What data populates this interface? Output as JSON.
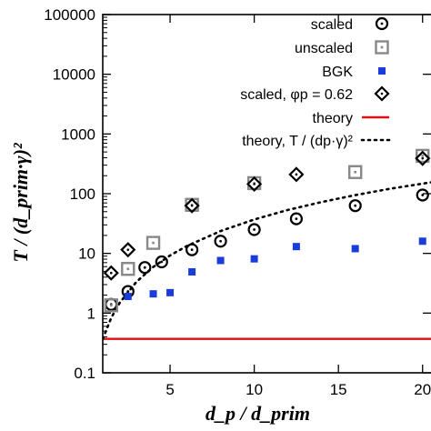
{
  "chart_data": {
    "type": "scatter",
    "ylabel": "T / (d_prim·γ)²",
    "xlabel": "d_p / d_prim",
    "yscale": "log",
    "xlim": [
      1,
      20.5
    ],
    "ylim": [
      0.1,
      100000
    ],
    "x_ticks": [
      5,
      10,
      15,
      20
    ],
    "x_tick_labels": [
      "5",
      "10",
      "15",
      "20"
    ],
    "y_ticks": [
      0.1,
      1,
      10,
      100,
      1000,
      10000,
      100000
    ],
    "y_tick_labels": [
      "0.1",
      "1",
      "10",
      "100",
      "1000",
      "10000",
      "100000"
    ],
    "legend_position": "top-right",
    "series": [
      {
        "name": "scaled",
        "marker": "circle-dot",
        "color": "#000000",
        "x": [
          1.5,
          2.5,
          3.5,
          4.5,
          6.3,
          8.0,
          10.0,
          12.5,
          16.0,
          20.0
        ],
        "y": [
          1.4,
          2.3,
          5.8,
          7.2,
          11.5,
          16,
          25,
          38,
          63,
          95
        ]
      },
      {
        "name": "unscaled",
        "marker": "square-dot",
        "color": "#888888",
        "x": [
          1.5,
          2.5,
          4.0,
          6.3,
          10.0,
          16.0,
          20.0
        ],
        "y": [
          1.35,
          5.5,
          15,
          65,
          150,
          230,
          430
        ]
      },
      {
        "name": "BGK",
        "marker": "filled-square",
        "color": "#1a3cdb",
        "x": [
          2.5,
          4.0,
          5.0,
          6.3,
          8.0,
          10.0,
          12.5,
          16.0,
          20.0
        ],
        "y": [
          1.9,
          2.1,
          2.2,
          4.9,
          7.6,
          8.1,
          13,
          12,
          16
        ]
      },
      {
        "name": "scaled, φp = 0.62",
        "marker": "diamond-dot",
        "color": "#000000",
        "x": [
          1.5,
          2.5,
          6.3,
          10.0,
          12.5,
          20.0
        ],
        "y": [
          4.7,
          11.5,
          63,
          145,
          210,
          390
        ]
      },
      {
        "name": "theory",
        "line": "solid",
        "color": "#dd1111",
        "x": [
          1.0,
          20.5
        ],
        "y": [
          0.37,
          0.37
        ]
      },
      {
        "name": "theory, T / (dp·γ)²",
        "line": "dotted",
        "color": "#000000",
        "x": [
          1.0,
          1.5,
          2.0,
          3.0,
          4.0,
          5.0,
          6.0,
          8.0,
          10.0,
          12.0,
          14.0,
          16.0,
          18.0,
          20.5
        ],
        "y": [
          0.37,
          0.83,
          1.48,
          3.33,
          5.92,
          9.25,
          13.3,
          23.7,
          37,
          53.3,
          72.5,
          94.7,
          120,
          155
        ]
      }
    ]
  }
}
